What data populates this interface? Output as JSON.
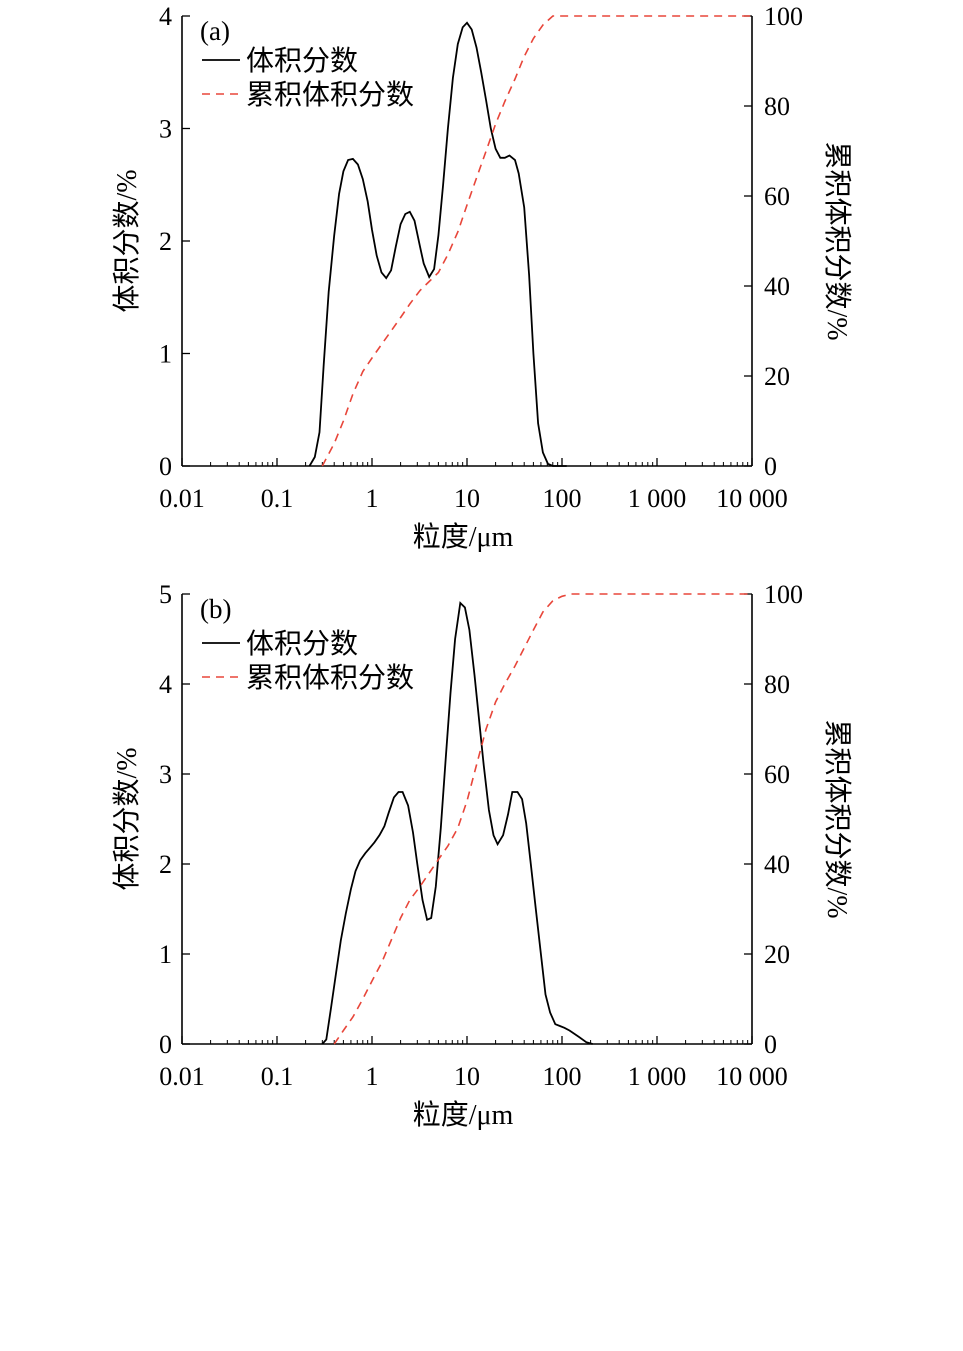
{
  "colors": {
    "volume": "#000000",
    "cumulative": "#e8463a"
  },
  "chart_data": [
    {
      "type": "line",
      "panel_label": "(a)",
      "xlabel": "粒度/μm",
      "ylabel_left": "体积分数/%",
      "ylabel_right": "累积体积分数/%",
      "x_scale": "log",
      "xlim": [
        0.01,
        10000
      ],
      "ylim_left": [
        0,
        4
      ],
      "ylim_right": [
        0,
        100
      ],
      "x_ticks": [
        0.01,
        0.1,
        1,
        10,
        100,
        1000,
        10000
      ],
      "x_tick_labels": [
        "0.01",
        "0.1",
        "1",
        "10",
        "100",
        "1 000",
        "10 000"
      ],
      "y_left_ticks": [
        0,
        1,
        2,
        3,
        4
      ],
      "y_left_tick_labels": [
        "0",
        "1",
        "2",
        "3",
        "4"
      ],
      "y_right_ticks": [
        0,
        20,
        40,
        60,
        80,
        100
      ],
      "y_right_tick_labels": [
        "0",
        "20",
        "40",
        "60",
        "80",
        "100"
      ],
      "grid": false,
      "legend_position": "top-left",
      "series": [
        {
          "name": "体积分数",
          "axis": "left",
          "style": "solid",
          "x": [
            0.22,
            0.25,
            0.28,
            0.31,
            0.35,
            0.4,
            0.45,
            0.5,
            0.56,
            0.63,
            0.71,
            0.8,
            0.9,
            1.0,
            1.12,
            1.26,
            1.41,
            1.59,
            1.78,
            2.0,
            2.24,
            2.5,
            2.8,
            3.2,
            3.5,
            4.0,
            4.5,
            5.0,
            5.6,
            6.3,
            7.1,
            8.0,
            9.0,
            10.0,
            11.2,
            12.6,
            14.1,
            15.9,
            17.8,
            20,
            22.4,
            25,
            28,
            32,
            35,
            40,
            45,
            50,
            56,
            63,
            71,
            80,
            90,
            100,
            112
          ],
          "y": [
            0.0,
            0.08,
            0.3,
            0.9,
            1.55,
            2.05,
            2.42,
            2.62,
            2.72,
            2.73,
            2.68,
            2.55,
            2.35,
            2.1,
            1.87,
            1.72,
            1.67,
            1.74,
            1.95,
            2.15,
            2.24,
            2.26,
            2.18,
            1.95,
            1.8,
            1.68,
            1.75,
            2.05,
            2.5,
            3.0,
            3.45,
            3.75,
            3.9,
            3.94,
            3.88,
            3.72,
            3.5,
            3.25,
            3.0,
            2.82,
            2.74,
            2.74,
            2.76,
            2.72,
            2.6,
            2.3,
            1.7,
            1.0,
            0.38,
            0.12,
            0.02,
            0.0,
            0.0,
            0.0,
            0.0
          ]
        },
        {
          "name": "累积体积分数",
          "axis": "right",
          "style": "dashed",
          "x": [
            0.3,
            0.4,
            0.5,
            0.63,
            0.8,
            1.0,
            1.26,
            1.59,
            2.0,
            2.5,
            3.2,
            4.0,
            5.0,
            6.3,
            8.0,
            10.0,
            12.6,
            15.9,
            20,
            25,
            32,
            40,
            50,
            63,
            80,
            100,
            126,
            1000,
            10000
          ],
          "y": [
            0,
            5,
            10,
            16,
            21,
            24,
            27,
            30,
            33,
            36,
            39,
            41,
            43,
            47,
            52,
            58,
            64,
            70,
            76,
            81,
            86,
            91,
            95,
            98,
            100,
            100,
            100,
            100,
            100
          ]
        }
      ]
    },
    {
      "type": "line",
      "panel_label": "(b)",
      "xlabel": "粒度/μm",
      "ylabel_left": "体积分数/%",
      "ylabel_right": "累积体积分数/%",
      "x_scale": "log",
      "xlim": [
        0.01,
        10000
      ],
      "ylim_left": [
        0,
        5
      ],
      "ylim_right": [
        0,
        100
      ],
      "x_ticks": [
        0.01,
        0.1,
        1,
        10,
        100,
        1000,
        10000
      ],
      "x_tick_labels": [
        "0.01",
        "0.1",
        "1",
        "10",
        "100",
        "1 000",
        "10 000"
      ],
      "y_left_ticks": [
        0,
        1,
        2,
        3,
        4,
        5
      ],
      "y_left_tick_labels": [
        "0",
        "1",
        "2",
        "3",
        "4",
        "5"
      ],
      "y_right_ticks": [
        0,
        20,
        40,
        60,
        80,
        100
      ],
      "y_right_tick_labels": [
        "0",
        "20",
        "40",
        "60",
        "80",
        "100"
      ],
      "grid": false,
      "legend_position": "top-left",
      "series": [
        {
          "name": "体积分数",
          "axis": "left",
          "style": "solid",
          "x": [
            0.3,
            0.33,
            0.37,
            0.42,
            0.47,
            0.53,
            0.6,
            0.67,
            0.75,
            0.85,
            0.95,
            1.06,
            1.2,
            1.35,
            1.5,
            1.7,
            1.9,
            2.1,
            2.4,
            2.7,
            3.0,
            3.4,
            3.8,
            4.2,
            4.7,
            5.3,
            6.0,
            6.7,
            7.5,
            8.5,
            9.5,
            10.6,
            12.0,
            13.4,
            15.0,
            17.0,
            19.0,
            21.0,
            24.0,
            27.0,
            30.0,
            34.0,
            38.0,
            42.0,
            47.0,
            53.0,
            60.0,
            67.0,
            75.0,
            85.0,
            95.0,
            106.0,
            120.0,
            150.0,
            180.0,
            210.0
          ],
          "y": [
            0.0,
            0.05,
            0.4,
            0.8,
            1.15,
            1.45,
            1.72,
            1.92,
            2.04,
            2.12,
            2.18,
            2.24,
            2.32,
            2.42,
            2.57,
            2.74,
            2.8,
            2.8,
            2.65,
            2.35,
            2.0,
            1.6,
            1.38,
            1.4,
            1.75,
            2.4,
            3.2,
            3.9,
            4.5,
            4.9,
            4.85,
            4.6,
            4.1,
            3.6,
            3.1,
            2.6,
            2.32,
            2.22,
            2.32,
            2.55,
            2.8,
            2.8,
            2.72,
            2.45,
            2.0,
            1.5,
            1.0,
            0.55,
            0.35,
            0.22,
            0.2,
            0.18,
            0.15,
            0.08,
            0.02,
            0.0
          ]
        },
        {
          "name": "累积体积分数",
          "axis": "right",
          "style": "dashed",
          "x": [
            0.4,
            0.5,
            0.63,
            0.8,
            1.0,
            1.26,
            1.59,
            2.0,
            2.5,
            3.2,
            4.0,
            5.0,
            6.3,
            8.0,
            10.0,
            12.6,
            15.9,
            20,
            25,
            32,
            40,
            50,
            63,
            80,
            100,
            126,
            158,
            200,
            1000,
            10000
          ],
          "y": [
            0,
            3,
            6,
            10,
            14,
            18,
            23,
            28,
            32,
            35,
            38,
            41,
            44,
            48,
            54,
            62,
            70,
            76,
            80,
            84,
            88,
            92,
            96,
            98.5,
            99.5,
            100,
            100,
            100,
            100,
            100
          ]
        }
      ]
    }
  ]
}
